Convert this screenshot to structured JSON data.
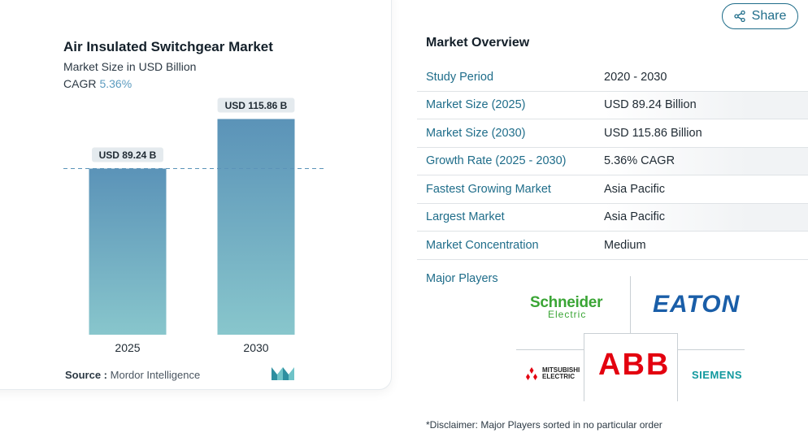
{
  "chart_card": {
    "title": "Air Insulated Switchgear Market",
    "subtitle": "Market Size in USD Billion",
    "cagr_label": "CAGR",
    "cagr_value": "5.36%",
    "source_label": "Source :",
    "source_value": "Mordor Intelligence"
  },
  "chart_data": {
    "type": "bar",
    "categories": [
      "2025",
      "2030"
    ],
    "values": [
      89.24,
      115.86
    ],
    "data_labels": [
      "USD 89.24 B",
      "USD 115.86 B"
    ],
    "reference_line": 89.24,
    "title": "Air Insulated Switchgear Market",
    "subtitle": "Market Size in USD Billion",
    "ylim": [
      0,
      120
    ],
    "grid": false,
    "colors": {
      "bar_top": "#5b93b8",
      "bar_bottom": "#88c6cc",
      "label_bg": "#e4eaee",
      "ref_line": "#5b93b8"
    }
  },
  "share": {
    "label": "Share",
    "icon": "share-icon"
  },
  "overview": {
    "title": "Market Overview",
    "rows": [
      {
        "key": "Study Period",
        "value": "2020 - 2030"
      },
      {
        "key": "Market Size (2025)",
        "value": "USD 89.24 Billion"
      },
      {
        "key": "Market Size (2030)",
        "value": "USD 115.86 Billion"
      },
      {
        "key": "Growth Rate (2025 - 2030)",
        "value": "5.36% CAGR"
      },
      {
        "key": "Fastest Growing Market",
        "value": "Asia Pacific"
      },
      {
        "key": "Largest Market",
        "value": "Asia Pacific"
      },
      {
        "key": "Market Concentration",
        "value": "Medium"
      }
    ]
  },
  "major_players": {
    "title": "Major Players",
    "logos": {
      "schneider_1": "Schneider",
      "schneider_2": "Electric",
      "eaton": "EATON",
      "mitsubishi_1": "MITSUBISHI",
      "mitsubishi_2": "ELECTRIC",
      "abb": "ABB",
      "siemens": "SIEMENS"
    }
  },
  "disclaimer": "*Disclaimer: Major Players sorted in no particular order"
}
